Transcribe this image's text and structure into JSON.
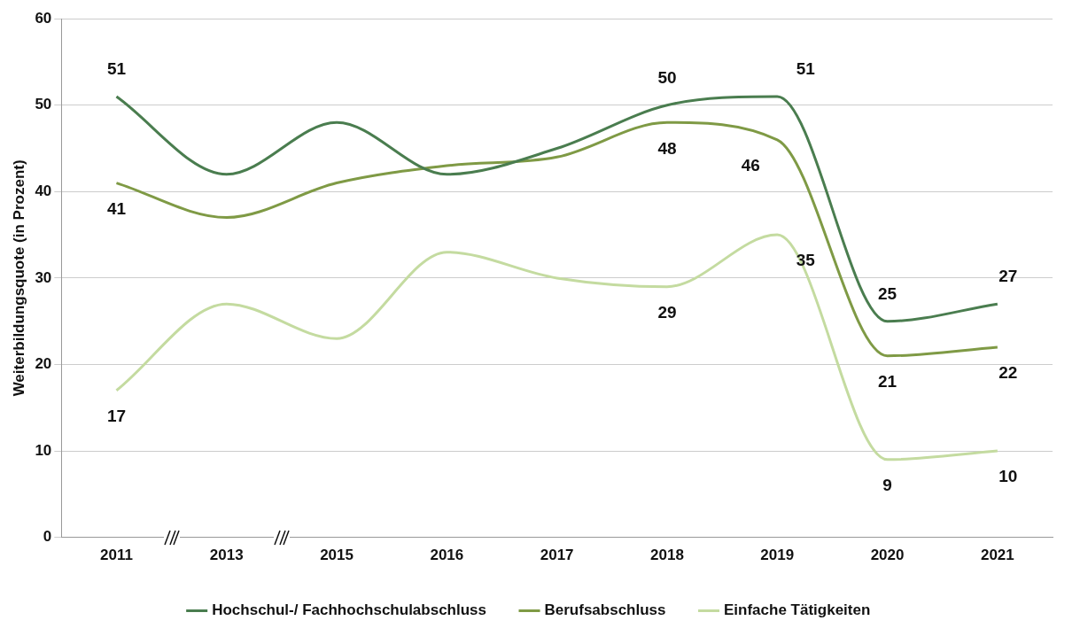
{
  "chart_data": {
    "type": "line",
    "ylabel": "Weiterbildungsquote (in Prozent)",
    "categories": [
      "2011",
      "2013",
      "2015",
      "2016",
      "2017",
      "2018",
      "2019",
      "2020",
      "2021"
    ],
    "series": [
      {
        "name": "Hochschul-/ Fachhochschulabschluss",
        "color": "#4a7d4f",
        "values": [
          51,
          42,
          48,
          42,
          45,
          50,
          51,
          25,
          27
        ],
        "value_labels": [
          "51",
          null,
          null,
          null,
          null,
          "50",
          "51",
          "25",
          "27"
        ]
      },
      {
        "name": "Berufsabschluss",
        "color": "#7f9a45",
        "values": [
          41,
          37,
          41,
          43,
          44,
          48,
          46,
          21,
          22
        ],
        "value_labels": [
          "41",
          null,
          null,
          null,
          null,
          "48",
          "46",
          "21",
          "22"
        ]
      },
      {
        "name": "Einfache Tätigkeiten",
        "color": "#c4dba0",
        "values": [
          17,
          27,
          23,
          33,
          30,
          29,
          35,
          9,
          10
        ],
        "value_labels": [
          "17",
          null,
          null,
          null,
          null,
          "29",
          "35",
          "9",
          "10"
        ]
      }
    ],
    "ylim": [
      0,
      60
    ],
    "yticks": [
      0,
      10,
      20,
      30,
      40,
      50,
      60
    ],
    "grid": "y",
    "legend": "bottom",
    "marker": "none",
    "line_style": "solid"
  }
}
